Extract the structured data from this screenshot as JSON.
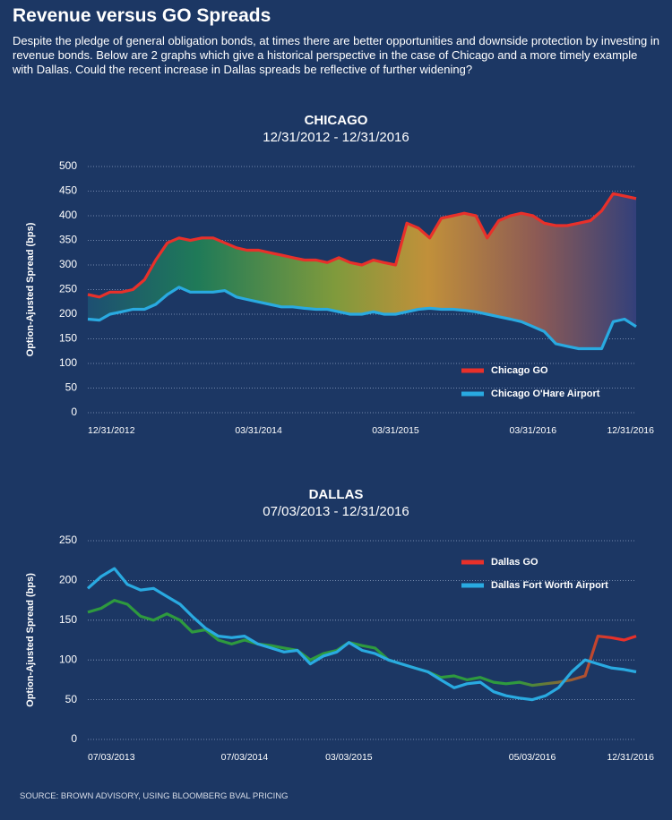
{
  "header": {
    "title": "Revenue versus GO Spreads",
    "description": "Despite the pledge of general obligation bonds, at times there are better opportunities and downside protection by investing in revenue bonds. Below are 2 graphs which give a historical perspective in the case of Chicago and a more timely example with Dallas. Could the recent increase in Dallas spreads be reflective of further widening?"
  },
  "chart_data": [
    {
      "type": "line",
      "title": "CHICAGO",
      "subtitle": "12/31/2012 - 12/31/2016",
      "y_label": "Option-Ajusted Spread (bps)",
      "x": [
        "12/31/2012",
        "01/31/2013",
        "02/28/2013",
        "03/31/2013",
        "04/30/2013",
        "05/31/2013",
        "06/30/2013",
        "07/31/2013",
        "08/31/2013",
        "09/30/2013",
        "10/31/2013",
        "11/30/2013",
        "12/31/2013",
        "01/31/2014",
        "02/28/2014",
        "03/31/2014",
        "04/30/2014",
        "05/31/2014",
        "06/30/2014",
        "07/31/2014",
        "08/31/2014",
        "09/30/2014",
        "10/31/2014",
        "11/30/2014",
        "12/31/2014",
        "01/31/2015",
        "02/28/2015",
        "03/31/2015",
        "04/30/2015",
        "05/31/2015",
        "06/30/2015",
        "07/31/2015",
        "08/31/2015",
        "09/30/2015",
        "10/31/2015",
        "11/30/2015",
        "12/31/2015",
        "01/31/2016",
        "02/29/2016",
        "03/31/2016",
        "04/30/2016",
        "05/31/2016",
        "06/30/2016",
        "07/31/2016",
        "08/31/2016",
        "09/30/2016",
        "10/31/2016",
        "11/30/2016",
        "12/31/2016"
      ],
      "series": [
        {
          "name": "Chicago GO",
          "color": "#e8302a",
          "values": [
            240,
            235,
            245,
            245,
            250,
            270,
            310,
            345,
            355,
            350,
            355,
            355,
            345,
            335,
            330,
            330,
            325,
            320,
            315,
            310,
            310,
            305,
            315,
            305,
            300,
            310,
            305,
            300,
            385,
            375,
            355,
            395,
            400,
            405,
            400,
            355,
            390,
            400,
            405,
            400,
            385,
            380,
            380,
            385,
            390,
            410,
            445,
            440,
            435
          ]
        },
        {
          "name": "Chicago O'Hare Airport",
          "color": "#29aae1",
          "values": [
            190,
            188,
            200,
            205,
            210,
            210,
            220,
            240,
            255,
            245,
            245,
            245,
            248,
            235,
            230,
            225,
            220,
            215,
            215,
            212,
            210,
            210,
            205,
            200,
            200,
            205,
            200,
            200,
            205,
            210,
            212,
            210,
            210,
            208,
            205,
            200,
            195,
            190,
            185,
            175,
            165,
            140,
            135,
            130,
            130,
            130,
            185,
            190,
            175
          ]
        }
      ],
      "fill_between": true,
      "xlim": [
        "12/31/2012",
        "12/31/2016"
      ],
      "xticks": [
        "12/31/2012",
        "03/31/2014",
        "03/31/2015",
        "03/31/2016",
        "12/31/2016"
      ],
      "ylim": [
        0,
        500
      ],
      "yticks": [
        0,
        50,
        100,
        150,
        200,
        250,
        300,
        350,
        400,
        450,
        500
      ],
      "grid": true,
      "legend": "lower right"
    },
    {
      "type": "line",
      "title": "DALLAS",
      "subtitle": "07/03/2013 - 12/31/2016",
      "y_label": "Option-Ajusted Spread (bps)",
      "x": [
        "07/03/2013",
        "08/03/2013",
        "09/03/2013",
        "10/03/2013",
        "11/03/2013",
        "12/03/2013",
        "01/03/2014",
        "02/03/2014",
        "03/03/2014",
        "04/03/2014",
        "05/03/2014",
        "06/03/2014",
        "07/03/2014",
        "08/03/2014",
        "09/03/2014",
        "10/03/2014",
        "11/03/2014",
        "12/03/2014",
        "01/03/2015",
        "02/03/2015",
        "03/03/2015",
        "04/03/2015",
        "05/03/2015",
        "06/03/2015",
        "07/03/2015",
        "08/03/2015",
        "09/03/2015",
        "10/03/2015",
        "11/03/2015",
        "12/03/2015",
        "01/03/2016",
        "02/03/2016",
        "03/03/2016",
        "04/03/2016",
        "05/03/2016",
        "06/03/2016",
        "07/03/2016",
        "08/03/2016",
        "09/03/2016",
        "10/03/2016",
        "11/03/2016",
        "12/03/2016",
        "12/31/2016"
      ],
      "series": [
        {
          "name": "Dallas GO",
          "color": "#e8302a",
          "stroke_gradient": [
            "#2e9a3e",
            "#e8302a"
          ],
          "values": [
            160,
            165,
            175,
            170,
            155,
            150,
            158,
            150,
            135,
            138,
            125,
            120,
            125,
            120,
            118,
            115,
            112,
            100,
            108,
            112,
            122,
            118,
            115,
            100,
            95,
            90,
            85,
            78,
            80,
            75,
            78,
            72,
            70,
            72,
            68,
            70,
            72,
            75,
            80,
            130,
            128,
            125,
            130
          ]
        },
        {
          "name": "Dallas Fort Worth Airport",
          "color": "#29aae1",
          "values": [
            190,
            205,
            215,
            195,
            188,
            190,
            180,
            170,
            155,
            140,
            130,
            128,
            130,
            120,
            115,
            110,
            112,
            95,
            105,
            110,
            122,
            112,
            108,
            100,
            95,
            90,
            85,
            75,
            65,
            70,
            72,
            60,
            55,
            52,
            50,
            55,
            65,
            85,
            100,
            95,
            90,
            88,
            85
          ]
        }
      ],
      "xlim": [
        "07/03/2013",
        "12/31/2016"
      ],
      "xticks": [
        "07/03/2013",
        "07/03/2014",
        "03/03/2015",
        "05/03/2016",
        "12/31/2016"
      ],
      "ylim": [
        0,
        250
      ],
      "yticks": [
        0,
        50,
        100,
        150,
        200,
        250
      ],
      "grid": true,
      "legend": "upper right"
    }
  ],
  "source": "SOURCE: BROWN ADVISORY, USING BLOOMBERG BVAL PRICING"
}
